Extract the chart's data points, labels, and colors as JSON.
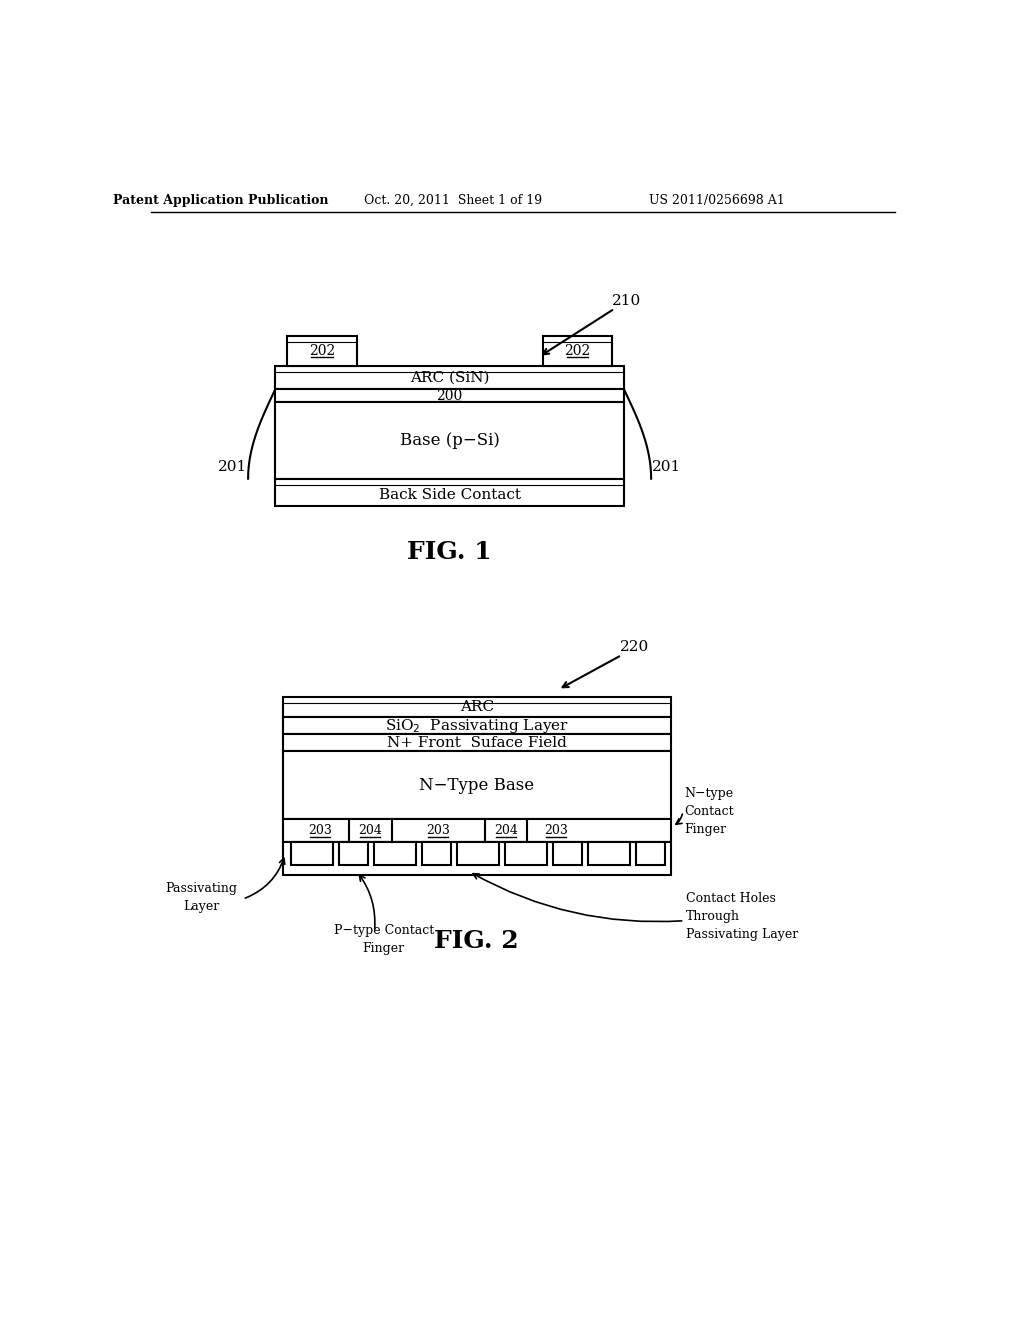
{
  "bg_color": "#ffffff",
  "header_text1": "Patent Application Publication",
  "header_text2": "Oct. 20, 2011  Sheet 1 of 19",
  "header_text3": "US 2011/0256698 A1",
  "fig1_label": "FIG. 1",
  "fig2_label": "FIG. 2",
  "fig1_ref": "210",
  "fig2_ref": "220"
}
